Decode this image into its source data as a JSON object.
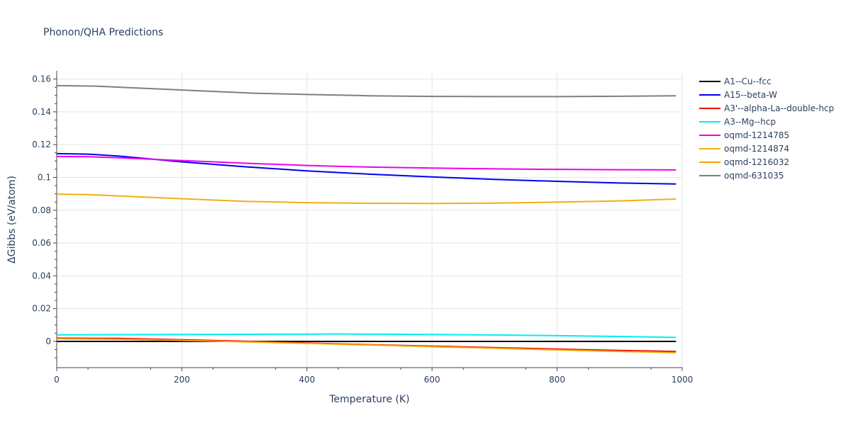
{
  "chart_data": {
    "type": "line",
    "title": "Phonon/QHA Predictions",
    "xlabel": "Temperature (K)",
    "ylabel": "ΔGibbs (eV/atom)",
    "xlim": [
      0,
      1000
    ],
    "ylim": [
      -0.016,
      0.165
    ],
    "xticks": [
      0,
      200,
      400,
      600,
      800,
      1000
    ],
    "xtick_labels": [
      "0",
      "200",
      "400",
      "600",
      "800",
      "1000"
    ],
    "yticks": [
      0,
      0.02,
      0.04,
      0.06,
      0.08,
      0.1,
      0.12,
      0.14,
      0.16
    ],
    "ytick_labels": [
      "0",
      "0.02",
      "0.04",
      "0.06",
      "0.08",
      "0.1",
      "0.12",
      "0.14",
      "0.16"
    ],
    "grid": true,
    "legend_position": "right",
    "series": [
      {
        "name": "A1--Cu--fcc",
        "color": "#000000",
        "x": [
          0,
          990
        ],
        "y": [
          0,
          0
        ]
      },
      {
        "name": "A15--beta-W",
        "color": "#0000ee",
        "x": [
          0,
          50,
          100,
          200,
          300,
          400,
          500,
          600,
          700,
          800,
          900,
          990
        ],
        "y": [
          0.1145,
          0.1142,
          0.113,
          0.1095,
          0.1065,
          0.104,
          0.102,
          0.1003,
          0.0988,
          0.0976,
          0.0966,
          0.096
        ]
      },
      {
        "name": "A3'--alpha-La--double-hcp",
        "color": "#ee0000",
        "x": [
          0,
          100,
          200,
          300,
          400,
          500,
          600,
          700,
          800,
          900,
          990
        ],
        "y": [
          0.002,
          0.0018,
          0.001,
          0.0001,
          -0.001,
          -0.002,
          -0.0029,
          -0.0038,
          -0.0047,
          -0.0055,
          -0.0062
        ]
      },
      {
        "name": "A3--Mg--hcp",
        "color": "#00eeee",
        "x": [
          0,
          100,
          200,
          300,
          400,
          450,
          500,
          600,
          700,
          800,
          900,
          990
        ],
        "y": [
          0.004,
          0.0041,
          0.0042,
          0.0043,
          0.0044,
          0.0045,
          0.0044,
          0.0042,
          0.0039,
          0.0035,
          0.003,
          0.0024
        ]
      },
      {
        "name": "oqmd-1214785",
        "color": "#ee00ee",
        "x": [
          0,
          50,
          100,
          200,
          300,
          400,
          500,
          600,
          700,
          800,
          900,
          990
        ],
        "y": [
          0.1128,
          0.1126,
          0.112,
          0.1103,
          0.1087,
          0.1073,
          0.1063,
          0.1057,
          0.1052,
          0.1049,
          0.1047,
          0.1046
        ]
      },
      {
        "name": "oqmd-1214874",
        "color": "#eeb111",
        "x": [
          0,
          50,
          100,
          200,
          300,
          400,
          500,
          600,
          700,
          800,
          900,
          990
        ],
        "y": [
          0.0898,
          0.0895,
          0.0887,
          0.087,
          0.0854,
          0.0846,
          0.0842,
          0.0841,
          0.0843,
          0.0849,
          0.0857,
          0.0868
        ]
      },
      {
        "name": "oqmd-1216032",
        "color": "#f5a300",
        "x": [
          0,
          100,
          200,
          300,
          400,
          500,
          600,
          700,
          800,
          900,
          990
        ],
        "y": [
          0.0016,
          0.0013,
          0.0006,
          -0.0003,
          -0.0012,
          -0.0022,
          -0.0032,
          -0.0042,
          -0.0052,
          -0.0061,
          -0.0069
        ]
      },
      {
        "name": "oqmd-631035",
        "color": "#7f7f7f",
        "x": [
          0,
          60,
          100,
          200,
          320,
          400,
          500,
          600,
          700,
          800,
          900,
          990
        ],
        "y": [
          0.156,
          0.1557,
          0.155,
          0.1533,
          0.1513,
          0.1506,
          0.1498,
          0.1494,
          0.1493,
          0.1493,
          0.1495,
          0.1498
        ]
      }
    ]
  }
}
